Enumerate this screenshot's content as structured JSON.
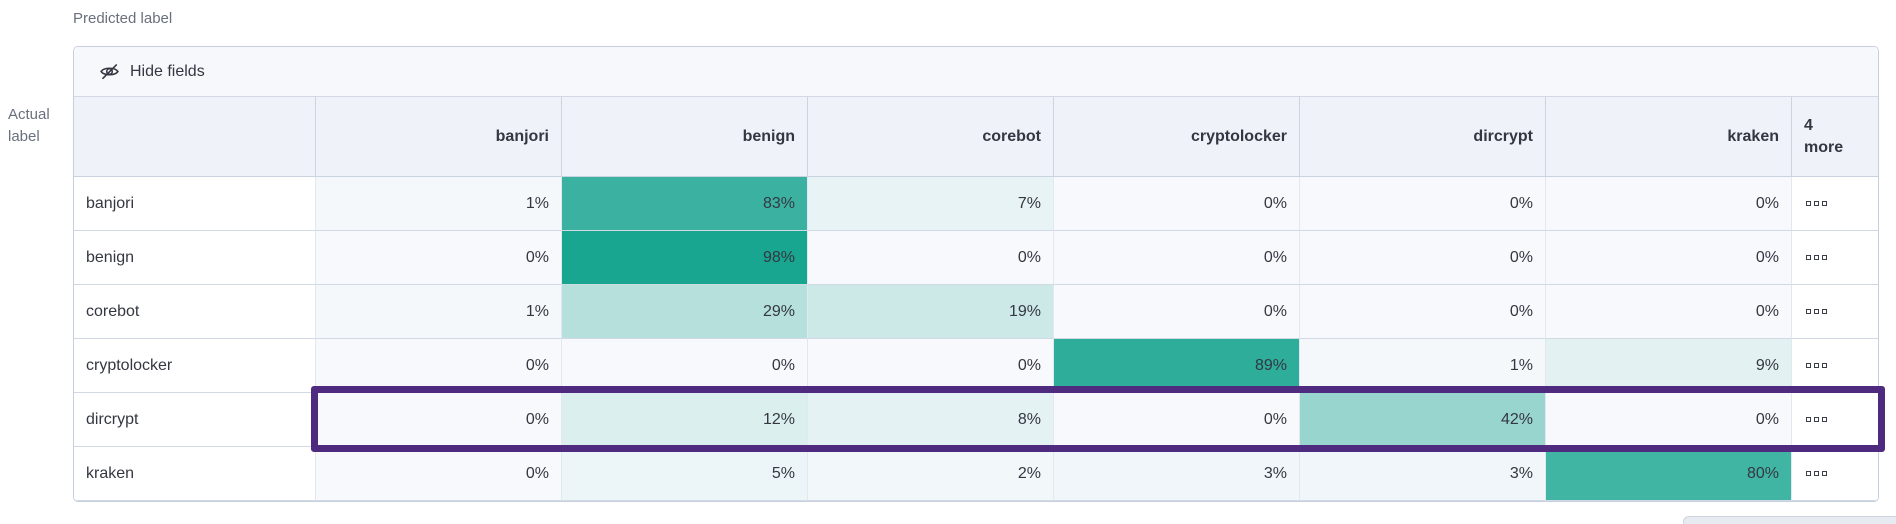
{
  "axes": {
    "predicted_label": "Predicted label",
    "actual_label": "Actual label"
  },
  "toolbar": {
    "hide_fields_label": "Hide fields",
    "icon": "eye-closed-icon"
  },
  "chart_data": {
    "type": "heatmap",
    "x_axis_label": "Predicted label",
    "y_axis_label": "Actual label",
    "columns": [
      "banjori",
      "benign",
      "corebot",
      "cryptolocker",
      "dircrypt",
      "kraken"
    ],
    "overflow_column": "4 more",
    "rows": [
      "banjori",
      "benign",
      "corebot",
      "cryptolocker",
      "dircrypt",
      "kraken"
    ],
    "values_percent": [
      [
        1,
        83,
        7,
        0,
        0,
        0
      ],
      [
        0,
        98,
        0,
        0,
        0,
        0
      ],
      [
        1,
        29,
        19,
        0,
        0,
        0
      ],
      [
        0,
        0,
        0,
        89,
        1,
        9
      ],
      [
        0,
        12,
        8,
        0,
        42,
        0
      ],
      [
        0,
        5,
        2,
        3,
        3,
        80
      ]
    ],
    "unit": "%",
    "highlighted_row": "dircrypt",
    "row_actions_icon": "boxes-horizontal-icon",
    "colors": {
      "cell_base": "#14A48E",
      "cell_zero": "#F7F9FC",
      "header_bg": "#EFF2F8",
      "toolbar_bg": "#F6F8FB",
      "highlight_border": "#4F2B80"
    }
  }
}
